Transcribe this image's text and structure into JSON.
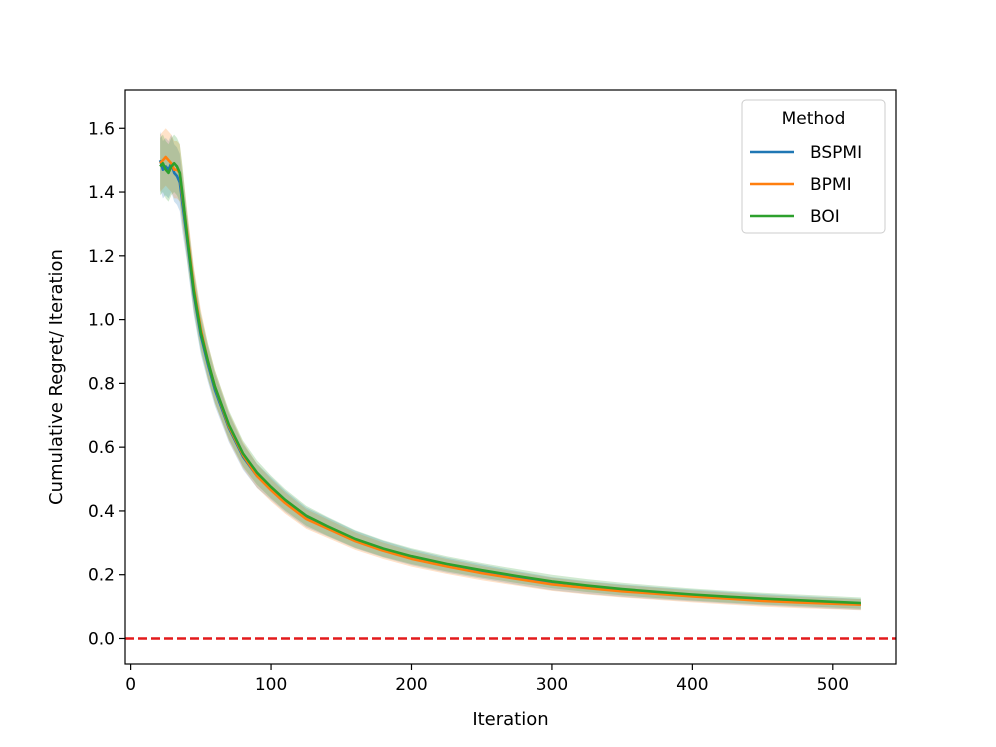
{
  "chart_data": {
    "type": "line",
    "title": "",
    "xlabel": "Iteration",
    "ylabel": "Cumulative Regret/ Iteration",
    "xlim": [
      -4,
      545
    ],
    "ylim": [
      -0.08,
      1.72
    ],
    "xticks": [
      0,
      100,
      200,
      300,
      400,
      500
    ],
    "yticks": [
      0.0,
      0.2,
      0.4,
      0.6,
      0.8,
      1.0,
      1.2,
      1.4,
      1.6
    ],
    "xtick_labels": [
      "0",
      "100",
      "200",
      "300",
      "400",
      "500"
    ],
    "ytick_labels": [
      "0.0",
      "0.2",
      "0.4",
      "0.6",
      "0.8",
      "1.0",
      "1.2",
      "1.4",
      "1.6"
    ],
    "grid": false,
    "legend": {
      "title": "Method",
      "placement": "top-right"
    },
    "reference_line": {
      "y": 0.0,
      "color": "#e31a1c",
      "style": "dashed"
    },
    "series": [
      {
        "name": "BSPMI",
        "color": "#1f77b4",
        "x": [
          21,
          23,
          25,
          27,
          29,
          31,
          33,
          35,
          37,
          40,
          45,
          50,
          55,
          60,
          70,
          80,
          90,
          100,
          110,
          125,
          140,
          160,
          180,
          200,
          225,
          250,
          275,
          300,
          325,
          350,
          375,
          400,
          425,
          450,
          475,
          500,
          520
        ],
        "y": [
          1.5,
          1.47,
          1.48,
          1.47,
          1.49,
          1.46,
          1.45,
          1.43,
          1.36,
          1.26,
          1.08,
          0.95,
          0.86,
          0.78,
          0.66,
          0.57,
          0.51,
          0.47,
          0.43,
          0.38,
          0.35,
          0.31,
          0.28,
          0.255,
          0.23,
          0.21,
          0.19,
          0.172,
          0.16,
          0.15,
          0.142,
          0.135,
          0.128,
          0.122,
          0.116,
          0.111,
          0.107
        ]
      },
      {
        "name": "BPMI",
        "color": "#ff7f0e",
        "x": [
          21,
          23,
          25,
          27,
          29,
          31,
          33,
          35,
          37,
          40,
          45,
          50,
          55,
          60,
          70,
          80,
          90,
          100,
          110,
          125,
          140,
          160,
          180,
          200,
          225,
          250,
          275,
          300,
          325,
          350,
          375,
          400,
          425,
          450,
          475,
          500,
          520
        ],
        "y": [
          1.49,
          1.5,
          1.51,
          1.5,
          1.49,
          1.47,
          1.47,
          1.46,
          1.38,
          1.28,
          1.1,
          0.97,
          0.87,
          0.79,
          0.665,
          0.575,
          0.51,
          0.465,
          0.425,
          0.375,
          0.345,
          0.305,
          0.275,
          0.25,
          0.226,
          0.205,
          0.187,
          0.17,
          0.158,
          0.148,
          0.14,
          0.132,
          0.125,
          0.118,
          0.113,
          0.109,
          0.106
        ]
      },
      {
        "name": "BOI",
        "color": "#2ca02c",
        "x": [
          21,
          23,
          25,
          27,
          29,
          31,
          33,
          35,
          37,
          40,
          45,
          50,
          55,
          60,
          70,
          80,
          90,
          100,
          110,
          125,
          140,
          160,
          180,
          200,
          225,
          250,
          275,
          300,
          325,
          350,
          375,
          400,
          425,
          450,
          475,
          500,
          520
        ],
        "y": [
          1.48,
          1.49,
          1.47,
          1.46,
          1.48,
          1.49,
          1.48,
          1.46,
          1.39,
          1.27,
          1.09,
          0.96,
          0.87,
          0.79,
          0.67,
          0.58,
          0.52,
          0.475,
          0.435,
          0.385,
          0.352,
          0.312,
          0.282,
          0.258,
          0.234,
          0.214,
          0.196,
          0.179,
          0.166,
          0.155,
          0.146,
          0.138,
          0.131,
          0.125,
          0.12,
          0.115,
          0.111
        ]
      }
    ]
  }
}
